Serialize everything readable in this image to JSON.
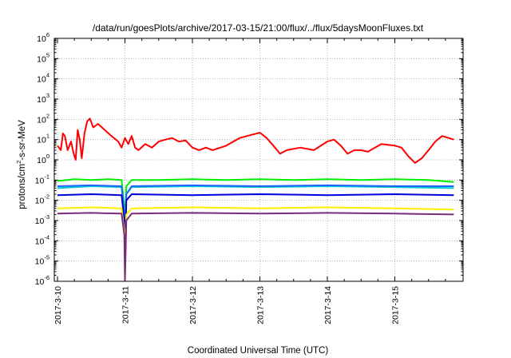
{
  "chart_data": {
    "type": "line",
    "title": "/data/run/goesPlots/archive/2017-03-15/21:00/flux/../flux/5daysMoonFluxes.txt",
    "xlabel": "Coordinated Universal Time (UTC)",
    "ylabel": "protons/cm²-s-sr-MeV",
    "ylabel_parts": {
      "pre": "protons/cm",
      "sup": "2",
      "post": "-s-sr-MeV"
    },
    "x_tick_labels": [
      "2017-3-10",
      "2017-3-11",
      "2017-3-12",
      "2017-3-13",
      "2017-3-14",
      "2017-3-15"
    ],
    "x_range": [
      "2017-3-10",
      "2017-3-15 21:00"
    ],
    "y_scale": "log",
    "ylim": [
      1e-06,
      1000000.0
    ],
    "y_tick_exponents": [
      -6,
      -5,
      -4,
      -3,
      -2,
      -1,
      0,
      1,
      2,
      3,
      4,
      5,
      6
    ],
    "y_tick_base": "10",
    "grid": true,
    "legend": "none",
    "series": [
      {
        "color": "#ff0000",
        "points": [
          [
            0.0,
            5
          ],
          [
            0.05,
            3
          ],
          [
            0.08,
            20
          ],
          [
            0.11,
            15
          ],
          [
            0.15,
            3
          ],
          [
            0.2,
            8
          ],
          [
            0.24,
            2
          ],
          [
            0.27,
            1
          ],
          [
            0.3,
            30
          ],
          [
            0.33,
            10
          ],
          [
            0.36,
            1.2
          ],
          [
            0.4,
            20
          ],
          [
            0.44,
            80
          ],
          [
            0.48,
            110
          ],
          [
            0.53,
            40
          ],
          [
            0.6,
            60
          ],
          [
            0.7,
            30
          ],
          [
            0.8,
            15
          ],
          [
            0.9,
            8
          ],
          [
            0.95,
            4
          ],
          [
            1.0,
            12
          ],
          [
            1.05,
            6
          ],
          [
            1.1,
            15
          ],
          [
            1.15,
            4
          ],
          [
            1.2,
            3
          ],
          [
            1.3,
            6
          ],
          [
            1.4,
            4
          ],
          [
            1.5,
            8
          ],
          [
            1.6,
            10
          ],
          [
            1.7,
            12
          ],
          [
            1.8,
            8
          ],
          [
            1.9,
            9
          ],
          [
            2.0,
            4
          ],
          [
            2.1,
            3
          ],
          [
            2.2,
            4
          ],
          [
            2.3,
            3
          ],
          [
            2.5,
            5
          ],
          [
            2.7,
            12
          ],
          [
            2.9,
            18
          ],
          [
            3.0,
            22
          ],
          [
            3.1,
            12
          ],
          [
            3.2,
            5
          ],
          [
            3.3,
            2
          ],
          [
            3.4,
            3
          ],
          [
            3.6,
            4
          ],
          [
            3.8,
            3
          ],
          [
            4.0,
            8
          ],
          [
            4.1,
            10
          ],
          [
            4.2,
            5
          ],
          [
            4.3,
            2
          ],
          [
            4.4,
            3
          ],
          [
            4.5,
            3
          ],
          [
            4.6,
            2.5
          ],
          [
            4.8,
            6
          ],
          [
            5.0,
            5
          ],
          [
            5.1,
            4
          ],
          [
            5.2,
            1.5
          ],
          [
            5.3,
            0.7
          ],
          [
            5.4,
            1.2
          ],
          [
            5.5,
            3
          ],
          [
            5.6,
            8
          ],
          [
            5.7,
            15
          ],
          [
            5.8,
            12
          ],
          [
            5.875,
            10
          ]
        ]
      },
      {
        "color": "#00ee00",
        "points": [
          [
            0.0,
            0.09
          ],
          [
            0.25,
            0.11
          ],
          [
            0.5,
            0.1
          ],
          [
            0.75,
            0.11
          ],
          [
            0.95,
            0.1
          ],
          [
            0.99,
            0.005
          ],
          [
            1.0,
            0.0001
          ],
          [
            1.02,
            0.05
          ],
          [
            1.1,
            0.1
          ],
          [
            1.5,
            0.1
          ],
          [
            2.0,
            0.11
          ],
          [
            2.5,
            0.1
          ],
          [
            3.0,
            0.11
          ],
          [
            3.5,
            0.1
          ],
          [
            4.0,
            0.11
          ],
          [
            4.5,
            0.1
          ],
          [
            5.0,
            0.11
          ],
          [
            5.5,
            0.1
          ],
          [
            5.875,
            0.08
          ]
        ]
      },
      {
        "color": "#00c8c8",
        "points": [
          [
            0.0,
            0.04
          ],
          [
            0.5,
            0.05
          ],
          [
            0.95,
            0.045
          ],
          [
            0.99,
            0.002
          ],
          [
            1.0,
            2e-05
          ],
          [
            1.02,
            0.02
          ],
          [
            1.1,
            0.045
          ],
          [
            2.0,
            0.05
          ],
          [
            3.0,
            0.045
          ],
          [
            4.0,
            0.05
          ],
          [
            5.0,
            0.045
          ],
          [
            5.875,
            0.04
          ]
        ]
      },
      {
        "color": "#1e64ff",
        "points": [
          [
            0.0,
            0.05
          ],
          [
            0.5,
            0.055
          ],
          [
            0.95,
            0.05
          ],
          [
            0.99,
            0.002
          ],
          [
            1.0,
            1e-05
          ],
          [
            1.02,
            0.02
          ],
          [
            1.1,
            0.05
          ],
          [
            2.0,
            0.055
          ],
          [
            3.0,
            0.05
          ],
          [
            4.0,
            0.055
          ],
          [
            5.0,
            0.05
          ],
          [
            5.875,
            0.05
          ]
        ]
      },
      {
        "color": "#0000dd",
        "points": [
          [
            0.0,
            0.018
          ],
          [
            0.5,
            0.02
          ],
          [
            0.95,
            0.018
          ],
          [
            0.99,
            0.001
          ],
          [
            1.0,
            5e-06
          ],
          [
            1.02,
            0.01
          ],
          [
            1.1,
            0.02
          ],
          [
            2.0,
            0.018
          ],
          [
            3.0,
            0.02
          ],
          [
            4.0,
            0.018
          ],
          [
            5.0,
            0.02
          ],
          [
            5.875,
            0.018
          ]
        ]
      },
      {
        "color": "#ffee00",
        "points": [
          [
            0.0,
            0.004
          ],
          [
            0.5,
            0.0045
          ],
          [
            0.95,
            0.004
          ],
          [
            0.99,
            0.0003
          ],
          [
            1.0,
            2e-06
          ],
          [
            1.02,
            0.002
          ],
          [
            1.1,
            0.004
          ],
          [
            2.0,
            0.0045
          ],
          [
            3.0,
            0.004
          ],
          [
            4.0,
            0.0045
          ],
          [
            5.0,
            0.004
          ],
          [
            5.875,
            0.0035
          ]
        ]
      },
      {
        "color": "#7a2a7a",
        "points": [
          [
            0.0,
            0.0022
          ],
          [
            0.5,
            0.0024
          ],
          [
            0.95,
            0.0022
          ],
          [
            0.99,
            0.0002
          ],
          [
            1.0,
            1e-06
          ],
          [
            1.02,
            0.001
          ],
          [
            1.1,
            0.0022
          ],
          [
            2.0,
            0.0024
          ],
          [
            3.0,
            0.0022
          ],
          [
            4.0,
            0.0024
          ],
          [
            5.0,
            0.0022
          ],
          [
            5.875,
            0.002
          ]
        ]
      }
    ]
  }
}
